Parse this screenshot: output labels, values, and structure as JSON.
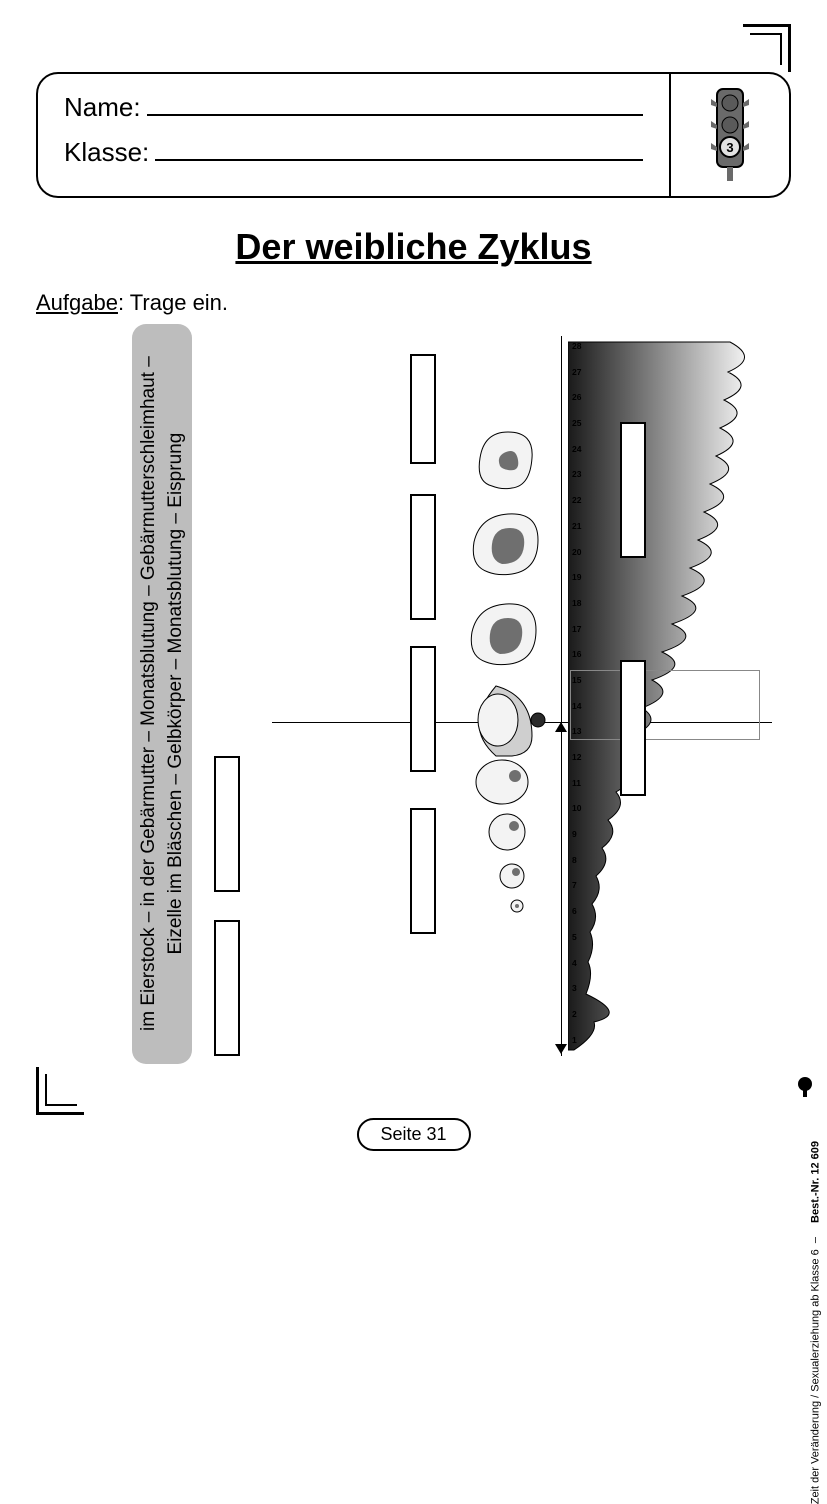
{
  "header": {
    "name_label": "Name:",
    "klasse_label": "Klasse:",
    "traffic_light": {
      "body": "#6a6a6a",
      "lit": "#e2e2e2",
      "lit_index": 2,
      "lit_text": "3"
    }
  },
  "title": "Der weibliche Zyklus",
  "task": {
    "label": "Aufgabe",
    "text": ": Trage ein."
  },
  "wordbank": {
    "line1": "im Eierstock – in der Gebärmutter – Monatsblutung – Gebärmutterschleimhaut –",
    "line2": "Eizelle im Bläschen – Gelbkörper – Monatsblutung – Eisprung"
  },
  "days": [
    "1",
    "2",
    "3",
    "4",
    "5",
    "6",
    "7",
    "8",
    "9",
    "10",
    "11",
    "12",
    "13",
    "14",
    "15",
    "16",
    "17",
    "18",
    "19",
    "20",
    "21",
    "22",
    "23",
    "24",
    "25",
    "26",
    "27",
    "28"
  ],
  "colors": {
    "bg": "#ffffff",
    "line": "#000000",
    "bank": "#bdbdbd",
    "follicle_fill": "#f3f3f3",
    "follicle_dark": "#6f6f6f",
    "gradient_dark": "#1a1a1a"
  },
  "footer": {
    "page_label": "Seite 31"
  },
  "publisher": {
    "text": "Zeit der Veränderung / Sexualerziehung ab Klasse 6",
    "bestnr": "Best.-Nr. 12 609"
  }
}
